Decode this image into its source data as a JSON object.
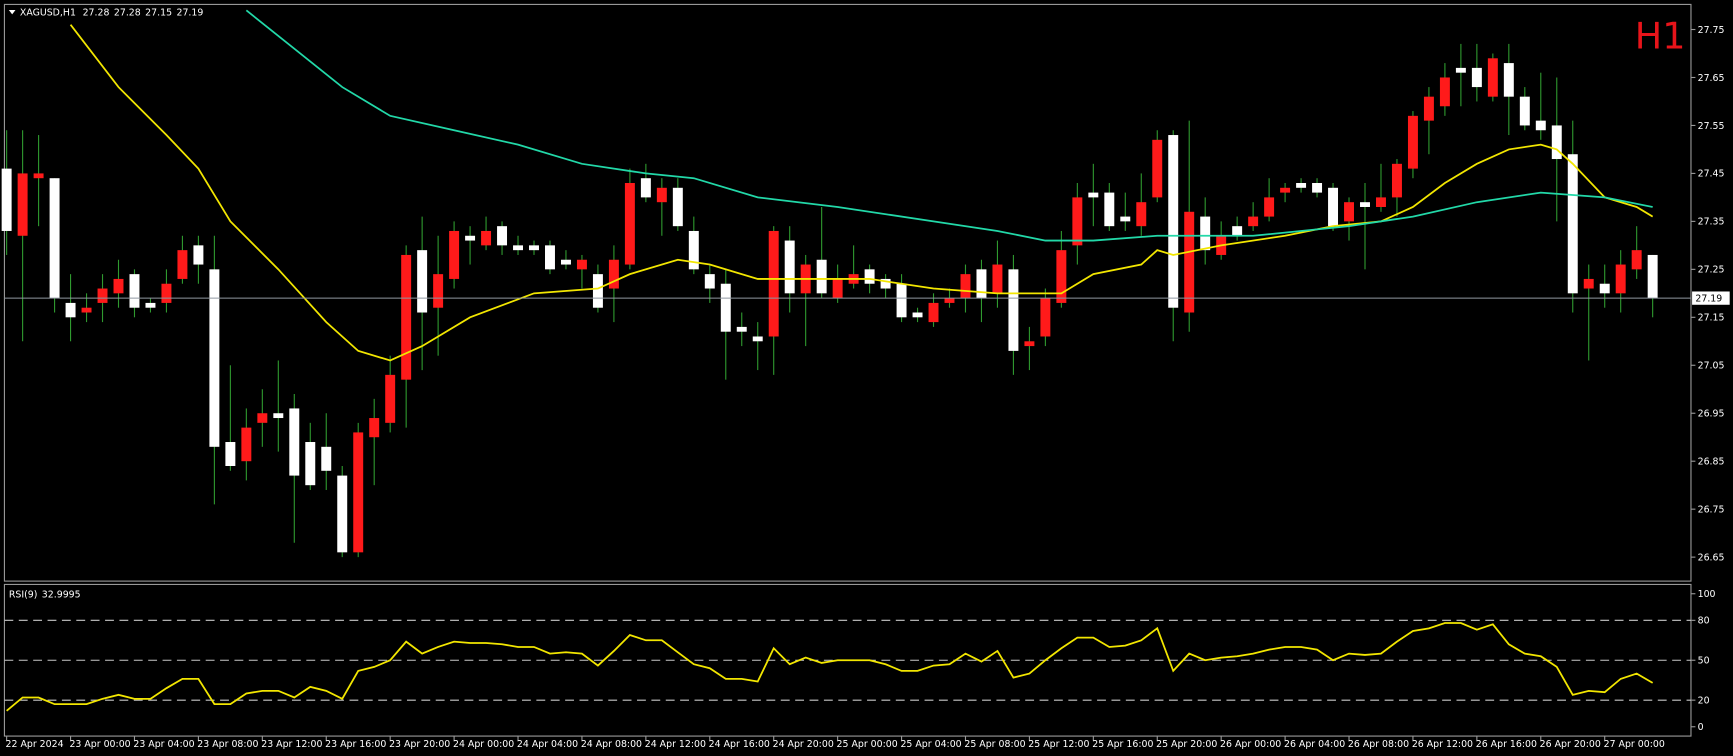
{
  "chart_data": [
    {
      "type": "candlestick",
      "symbol": "XAGUSD,H1",
      "annotation": "H1",
      "up_color": "#ff1a1a",
      "down_color": "#ffffff",
      "wick_color": "#2f9a2f",
      "price_line_color": "#8f98a0",
      "ylim": [
        26.6,
        27.8
      ],
      "yticks": [
        27.75,
        27.65,
        27.55,
        27.45,
        27.35,
        27.25,
        27.15,
        27.05,
        26.95,
        26.85,
        26.75,
        26.65
      ],
      "xticks": [
        {
          "value": 0,
          "label": "22 Apr 2024"
        },
        {
          "value": 4,
          "label": "23 Apr 00:00"
        },
        {
          "value": 8,
          "label": "23 Apr 04:00"
        },
        {
          "value": 12,
          "label": "23 Apr 08:00"
        },
        {
          "value": 16,
          "label": "23 Apr 12:00"
        },
        {
          "value": 20,
          "label": "23 Apr 16:00"
        },
        {
          "value": 24,
          "label": "23 Apr 20:00"
        },
        {
          "value": 28,
          "label": "24 Apr 00:00"
        },
        {
          "value": 32,
          "label": "24 Apr 04:00"
        },
        {
          "value": 36,
          "label": "24 Apr 08:00"
        },
        {
          "value": 40,
          "label": "24 Apr 12:00"
        },
        {
          "value": 44,
          "label": "24 Apr 16:00"
        },
        {
          "value": 48,
          "label": "24 Apr 20:00"
        },
        {
          "value": 52,
          "label": "25 Apr 00:00"
        },
        {
          "value": 56,
          "label": "25 Apr 04:00"
        },
        {
          "value": 60,
          "label": "25 Apr 08:00"
        },
        {
          "value": 64,
          "label": "25 Apr 12:00"
        },
        {
          "value": 68,
          "label": "25 Apr 16:00"
        },
        {
          "value": 72,
          "label": "25 Apr 20:00"
        },
        {
          "value": 76,
          "label": "26 Apr 00:00"
        },
        {
          "value": 80,
          "label": "26 Apr 04:00"
        },
        {
          "value": 84,
          "label": "26 Apr 08:00"
        },
        {
          "value": 88,
          "label": "26 Apr 12:00"
        },
        {
          "value": 92,
          "label": "26 Apr 16:00"
        },
        {
          "value": 96,
          "label": "26 Apr 20:00"
        },
        {
          "value": 100,
          "label": "27 Apr 00:00"
        }
      ],
      "open": [
        27.46,
        27.32,
        27.44,
        27.44,
        27.18,
        27.16,
        27.18,
        27.2,
        27.24,
        27.18,
        27.18,
        27.23,
        27.3,
        27.25,
        26.89,
        26.85,
        26.93,
        26.95,
        26.96,
        26.89,
        26.88,
        26.82,
        26.66,
        26.9,
        26.93,
        27.02,
        27.29,
        27.17,
        27.23,
        27.32,
        27.3,
        27.34,
        27.3,
        27.3,
        27.3,
        27.27,
        27.25,
        27.24,
        27.21,
        27.26,
        27.44,
        27.39,
        27.42,
        27.33,
        27.24,
        27.22,
        27.13,
        27.11,
        27.11,
        27.31,
        27.2,
        27.27,
        27.19,
        27.22,
        27.25,
        27.23,
        27.22,
        27.16,
        27.14,
        27.18,
        27.19,
        27.25,
        27.2,
        27.25,
        27.09,
        27.11,
        27.18,
        27.3,
        27.41,
        27.41,
        27.36,
        27.34,
        27.4,
        27.53,
        27.16,
        27.36,
        27.28,
        27.34,
        27.34,
        27.36,
        27.41,
        27.43,
        27.43,
        27.42,
        27.35,
        27.39,
        27.38,
        27.4,
        27.46,
        27.56,
        27.59,
        27.67,
        27.67,
        27.61,
        27.68,
        27.61,
        27.56,
        27.55,
        27.49,
        27.21,
        27.22,
        27.2,
        27.25,
        27.28
      ],
      "high": [
        27.54,
        27.54,
        27.53,
        27.44,
        27.24,
        27.2,
        27.24,
        27.27,
        27.25,
        27.19,
        27.25,
        27.32,
        27.32,
        27.32,
        27.05,
        26.96,
        27.0,
        27.06,
        26.99,
        26.93,
        26.95,
        26.84,
        26.93,
        26.98,
        27.07,
        27.3,
        27.36,
        27.32,
        27.35,
        27.34,
        27.36,
        27.35,
        27.32,
        27.31,
        27.31,
        27.29,
        27.28,
        27.26,
        27.3,
        27.46,
        27.47,
        27.44,
        27.44,
        27.36,
        27.26,
        27.25,
        27.16,
        27.14,
        27.34,
        27.34,
        27.28,
        27.38,
        27.26,
        27.3,
        27.26,
        27.24,
        27.24,
        27.17,
        27.2,
        27.21,
        27.26,
        27.27,
        27.31,
        27.28,
        27.13,
        27.21,
        27.33,
        27.43,
        27.47,
        27.43,
        27.41,
        27.45,
        27.54,
        27.54,
        27.56,
        27.4,
        27.35,
        27.36,
        27.39,
        27.44,
        27.43,
        27.44,
        27.44,
        27.43,
        27.4,
        27.43,
        27.47,
        27.48,
        27.58,
        27.63,
        27.68,
        27.72,
        27.72,
        27.7,
        27.72,
        27.63,
        27.66,
        27.65,
        27.56,
        27.26,
        27.26,
        27.29,
        27.34,
        27.28
      ],
      "low": [
        27.28,
        27.1,
        27.34,
        27.16,
        27.1,
        27.14,
        27.14,
        27.17,
        27.15,
        27.16,
        27.16,
        27.22,
        27.22,
        26.76,
        26.83,
        26.81,
        26.88,
        26.87,
        26.68,
        26.79,
        26.79,
        26.65,
        26.65,
        26.8,
        26.91,
        26.92,
        27.04,
        27.07,
        27.21,
        27.26,
        27.29,
        27.28,
        27.28,
        27.28,
        27.24,
        27.25,
        27.21,
        27.16,
        27.14,
        27.25,
        27.39,
        27.32,
        27.33,
        27.24,
        27.18,
        27.02,
        27.09,
        27.04,
        27.03,
        27.16,
        27.09,
        27.19,
        27.18,
        27.21,
        27.2,
        27.19,
        27.14,
        27.14,
        27.13,
        27.17,
        27.16,
        27.14,
        27.17,
        27.03,
        27.04,
        27.09,
        27.17,
        27.26,
        27.34,
        27.33,
        27.33,
        27.32,
        27.39,
        27.1,
        27.12,
        27.26,
        27.27,
        27.31,
        27.33,
        27.35,
        27.39,
        27.41,
        27.4,
        27.33,
        27.31,
        27.25,
        27.37,
        27.36,
        27.44,
        27.49,
        27.57,
        27.59,
        27.6,
        27.6,
        27.53,
        27.54,
        27.52,
        27.35,
        27.16,
        27.06,
        27.17,
        27.16,
        27.23,
        27.15
      ],
      "close": [
        27.33,
        27.45,
        27.45,
        27.19,
        27.15,
        27.17,
        27.21,
        27.23,
        27.17,
        27.17,
        27.22,
        27.29,
        27.26,
        26.88,
        26.84,
        26.92,
        26.95,
        26.94,
        26.82,
        26.8,
        26.83,
        26.66,
        26.91,
        26.94,
        27.03,
        27.28,
        27.16,
        27.24,
        27.33,
        27.31,
        27.33,
        27.3,
        27.29,
        27.29,
        27.25,
        27.26,
        27.27,
        27.17,
        27.27,
        27.43,
        27.4,
        27.42,
        27.34,
        27.25,
        27.21,
        27.12,
        27.12,
        27.1,
        27.33,
        27.2,
        27.26,
        27.2,
        27.23,
        27.24,
        27.22,
        27.21,
        27.15,
        27.15,
        27.18,
        27.19,
        27.24,
        27.19,
        27.26,
        27.08,
        27.1,
        27.19,
        27.29,
        27.4,
        27.4,
        27.34,
        27.35,
        27.39,
        27.52,
        27.17,
        27.37,
        27.29,
        27.32,
        27.32,
        27.36,
        27.4,
        27.42,
        27.42,
        27.41,
        27.34,
        27.39,
        27.38,
        27.4,
        27.47,
        27.57,
        27.61,
        27.65,
        27.66,
        27.63,
        27.69,
        27.61,
        27.55,
        27.54,
        27.48,
        27.2,
        27.23,
        27.2,
        27.26,
        27.29,
        27.19
      ],
      "series": [
        {
          "color": "#f2e600",
          "x": [
            4,
            7,
            10,
            12,
            14,
            17,
            20,
            22,
            24,
            26,
            29,
            33,
            37,
            39,
            42,
            44,
            47,
            50,
            54,
            58,
            62,
            64,
            66,
            68,
            71,
            72,
            73,
            76,
            80,
            83,
            86,
            88,
            90,
            92,
            94,
            96,
            97,
            98,
            100,
            102,
            103
          ],
          "values": [
            27.76,
            27.63,
            27.53,
            27.46,
            27.35,
            27.25,
            27.14,
            27.08,
            27.06,
            27.09,
            27.15,
            27.2,
            27.21,
            27.24,
            27.27,
            27.26,
            27.23,
            27.23,
            27.23,
            27.21,
            27.2,
            27.2,
            27.2,
            27.24,
            27.26,
            27.29,
            27.28,
            27.3,
            27.32,
            27.34,
            27.35,
            27.38,
            27.43,
            27.47,
            27.5,
            27.51,
            27.5,
            27.47,
            27.4,
            27.38,
            27.36
          ]
        },
        {
          "color": "#22d8a8",
          "x": [
            15,
            18,
            21,
            24,
            28,
            32,
            36,
            40,
            43,
            47,
            52,
            58,
            62,
            65,
            68,
            72,
            78,
            84,
            88,
            92,
            96,
            100,
            103
          ],
          "values": [
            27.79,
            27.71,
            27.63,
            27.57,
            27.54,
            27.51,
            27.47,
            27.45,
            27.44,
            27.4,
            27.38,
            27.35,
            27.33,
            27.31,
            27.31,
            27.32,
            27.32,
            27.34,
            27.36,
            27.39,
            27.41,
            27.4,
            27.38
          ]
        }
      ]
    },
    {
      "type": "line",
      "title": "RSI(9)",
      "color": "#f2e600",
      "level_color": "#c8c8c8",
      "ylim": [
        -7,
        107
      ],
      "yticks": [
        100,
        80,
        50,
        20,
        0
      ],
      "levels": [
        80,
        50,
        20
      ],
      "values": [
        12,
        22,
        22,
        17,
        17,
        17,
        21,
        24,
        21,
        21,
        29,
        36,
        36,
        17,
        17,
        25,
        27,
        27,
        22,
        30,
        27,
        21,
        42,
        45,
        50,
        64,
        55,
        60,
        64,
        63,
        63,
        62,
        60,
        60,
        55,
        56,
        55,
        46,
        57,
        69,
        65,
        65,
        56,
        47,
        44,
        36,
        36,
        34,
        59,
        47,
        52,
        48,
        50,
        50,
        50,
        47,
        42,
        42,
        46,
        47,
        55,
        49,
        57,
        37,
        40,
        50,
        59,
        67,
        67,
        60,
        61,
        65,
        74,
        42,
        55,
        50,
        52,
        53,
        55,
        58,
        60,
        60,
        58,
        50,
        55,
        54,
        55,
        64,
        72,
        74,
        78,
        78,
        73,
        77,
        62,
        55,
        53,
        45,
        24,
        27,
        26,
        36,
        40,
        32.9995
      ]
    }
  ]
}
